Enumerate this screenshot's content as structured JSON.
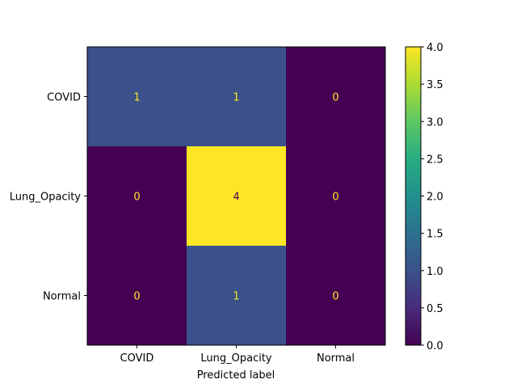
{
  "chart_data": {
    "type": "heatmap",
    "title": "",
    "xlabel": "Predicted label",
    "ylabel": "",
    "x_categories": [
      "COVID",
      "Lung_Opacity",
      "Normal"
    ],
    "y_categories": [
      "COVID",
      "Lung_Opacity",
      "Normal"
    ],
    "matrix": [
      [
        1,
        1,
        0
      ],
      [
        0,
        4,
        0
      ],
      [
        0,
        1,
        0
      ]
    ],
    "colormap": "viridis",
    "colorbar": {
      "min": 0.0,
      "max": 4.0,
      "ticks": [
        "0.0",
        "0.5",
        "1.0",
        "1.5",
        "2.0",
        "2.5",
        "3.0",
        "3.5",
        "4.0"
      ]
    },
    "annotation_colors": {
      "on_dark": "#fde725",
      "on_light": "#440154"
    }
  }
}
